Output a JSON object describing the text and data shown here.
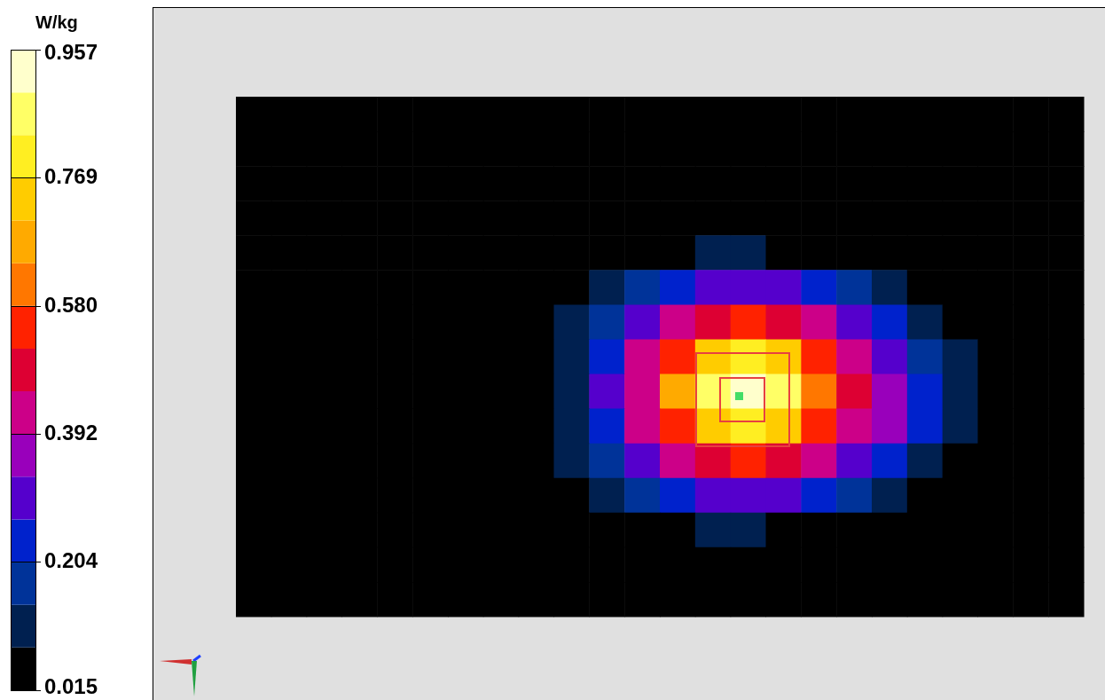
{
  "chart_data": {
    "type": "heatmap",
    "clabel": "W/kg",
    "categories": [
      null,
      null,
      null,
      null,
      null,
      null,
      null,
      null,
      null,
      null,
      null,
      null,
      null,
      null,
      null,
      null,
      null,
      null,
      null,
      null,
      null,
      null,
      null,
      null
    ],
    "y_categories": [
      null,
      null,
      null,
      null,
      null,
      null,
      null,
      null,
      null,
      null,
      null,
      null,
      null,
      null,
      null
    ],
    "cells": [
      [
        0.03,
        0.03,
        0.03,
        0.03,
        0.03,
        0.03,
        0.03,
        0.03,
        0.03,
        0.03,
        0.03,
        0.03,
        0.03,
        0.03,
        0.03,
        0.03,
        0.03,
        0.03,
        0.03,
        0.03,
        0.03,
        0.03,
        0.03,
        0.03
      ],
      [
        0.03,
        0.03,
        0.03,
        0.03,
        0.03,
        0.03,
        0.03,
        0.03,
        0.03,
        0.03,
        0.03,
        0.03,
        0.03,
        0.03,
        0.03,
        0.03,
        0.03,
        0.03,
        0.03,
        0.03,
        0.03,
        0.03,
        0.03,
        0.03
      ],
      [
        0.03,
        0.03,
        0.03,
        0.03,
        0.03,
        0.03,
        0.03,
        0.03,
        0.03,
        0.03,
        0.03,
        0.03,
        0.03,
        0.03,
        0.03,
        0.03,
        0.03,
        0.03,
        0.03,
        0.03,
        0.03,
        0.03,
        0.03,
        0.03
      ],
      [
        0.03,
        0.03,
        0.03,
        0.03,
        0.03,
        0.03,
        0.03,
        0.03,
        0.03,
        0.03,
        0.03,
        0.03,
        0.03,
        0.03,
        0.03,
        0.03,
        0.03,
        0.03,
        0.03,
        0.03,
        0.03,
        0.03,
        0.03,
        0.03
      ],
      [
        0.03,
        0.03,
        0.03,
        0.03,
        0.03,
        0.03,
        0.03,
        0.03,
        0.03,
        0.03,
        0.03,
        0.05,
        0.065,
        0.08,
        0.08,
        0.075,
        0.065,
        0.05,
        0.04,
        0.03,
        0.03,
        0.03,
        0.03,
        0.03
      ],
      [
        0.03,
        0.03,
        0.03,
        0.03,
        0.03,
        0.03,
        0.03,
        0.03,
        0.03,
        0.055,
        0.095,
        0.165,
        0.25,
        0.3,
        0.31,
        0.29,
        0.24,
        0.18,
        0.11,
        0.075,
        0.05,
        0.03,
        0.03,
        0.03
      ],
      [
        0.03,
        0.03,
        0.03,
        0.03,
        0.03,
        0.03,
        0.03,
        0.03,
        0.05,
        0.085,
        0.17,
        0.3,
        0.42,
        0.5,
        0.52,
        0.49,
        0.41,
        0.32,
        0.21,
        0.13,
        0.075,
        0.05,
        0.03,
        0.03
      ],
      [
        0.03,
        0.03,
        0.03,
        0.03,
        0.03,
        0.03,
        0.03,
        0.03,
        0.06,
        0.12,
        0.24,
        0.41,
        0.57,
        0.76,
        0.8,
        0.71,
        0.56,
        0.44,
        0.31,
        0.18,
        0.1,
        0.06,
        0.03,
        0.03
      ],
      [
        0.03,
        0.03,
        0.03,
        0.03,
        0.03,
        0.03,
        0.03,
        0.03,
        0.06,
        0.13,
        0.27,
        0.45,
        0.66,
        0.89,
        0.94,
        0.85,
        0.64,
        0.48,
        0.34,
        0.21,
        0.11,
        0.065,
        0.03,
        0.03
      ],
      [
        0.03,
        0.03,
        0.03,
        0.03,
        0.03,
        0.03,
        0.03,
        0.03,
        0.06,
        0.12,
        0.24,
        0.41,
        0.57,
        0.76,
        0.8,
        0.71,
        0.56,
        0.45,
        0.33,
        0.21,
        0.12,
        0.065,
        0.03,
        0.03
      ],
      [
        0.03,
        0.03,
        0.03,
        0.03,
        0.03,
        0.03,
        0.03,
        0.03,
        0.05,
        0.085,
        0.17,
        0.3,
        0.42,
        0.5,
        0.52,
        0.49,
        0.41,
        0.32,
        0.21,
        0.13,
        0.075,
        0.05,
        0.03,
        0.03
      ],
      [
        0.03,
        0.03,
        0.03,
        0.03,
        0.03,
        0.03,
        0.03,
        0.03,
        0.03,
        0.055,
        0.095,
        0.165,
        0.25,
        0.3,
        0.31,
        0.29,
        0.24,
        0.18,
        0.11,
        0.075,
        0.05,
        0.03,
        0.03,
        0.03
      ],
      [
        0.03,
        0.03,
        0.03,
        0.03,
        0.03,
        0.03,
        0.03,
        0.03,
        0.03,
        0.03,
        0.03,
        0.05,
        0.065,
        0.08,
        0.08,
        0.075,
        0.065,
        0.05,
        0.04,
        0.03,
        0.03,
        0.03,
        0.03,
        0.03
      ],
      [
        0.03,
        0.03,
        0.03,
        0.03,
        0.03,
        0.03,
        0.03,
        0.03,
        0.03,
        0.03,
        0.03,
        0.03,
        0.03,
        0.03,
        0.03,
        0.03,
        0.03,
        0.03,
        0.03,
        0.03,
        0.03,
        0.03,
        0.03,
        0.03
      ],
      [
        0.03,
        0.03,
        0.03,
        0.03,
        0.03,
        0.03,
        0.03,
        0.03,
        0.03,
        0.03,
        0.03,
        0.03,
        0.03,
        0.03,
        0.03,
        0.03,
        0.03,
        0.03,
        0.03,
        0.03,
        0.03,
        0.03,
        0.03,
        0.03
      ]
    ],
    "clim": [
      0.015,
      0.957
    ],
    "cticks": [
      0.015,
      0.204,
      0.392,
      {
        "value": 0.58,
        "label": "0.580"
      },
      0.769,
      0.957
    ]
  }
}
